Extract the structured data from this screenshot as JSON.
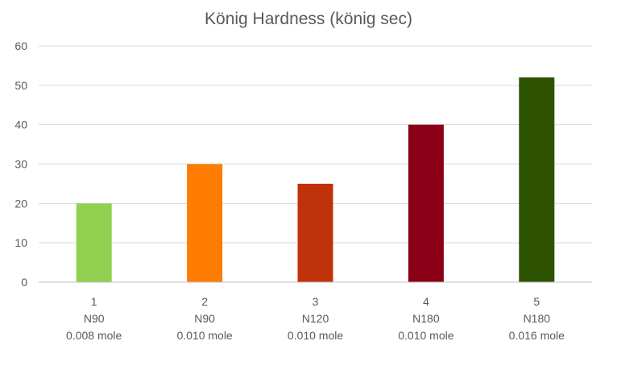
{
  "chart_data": {
    "type": "bar",
    "title": "König Hardness (könig sec)",
    "xlabel": "",
    "ylabel": "",
    "ylim": [
      0,
      60
    ],
    "yticks": [
      0,
      10,
      20,
      30,
      40,
      50,
      60
    ],
    "grid": true,
    "legend": "none",
    "categories": [
      {
        "lines": [
          "1",
          "N90",
          "0.008 mole"
        ]
      },
      {
        "lines": [
          "2",
          "N90",
          "0.010 mole"
        ]
      },
      {
        "lines": [
          "3",
          "N120",
          "0.010 mole"
        ]
      },
      {
        "lines": [
          "4",
          "N180",
          "0.010 mole"
        ]
      },
      {
        "lines": [
          "5",
          "N180",
          "0.016 mole"
        ]
      }
    ],
    "values": [
      20,
      30,
      25,
      40,
      52
    ],
    "colors": [
      "#92d050",
      "#ff7c00",
      "#c0330a",
      "#8b0016",
      "#2d5200"
    ]
  }
}
